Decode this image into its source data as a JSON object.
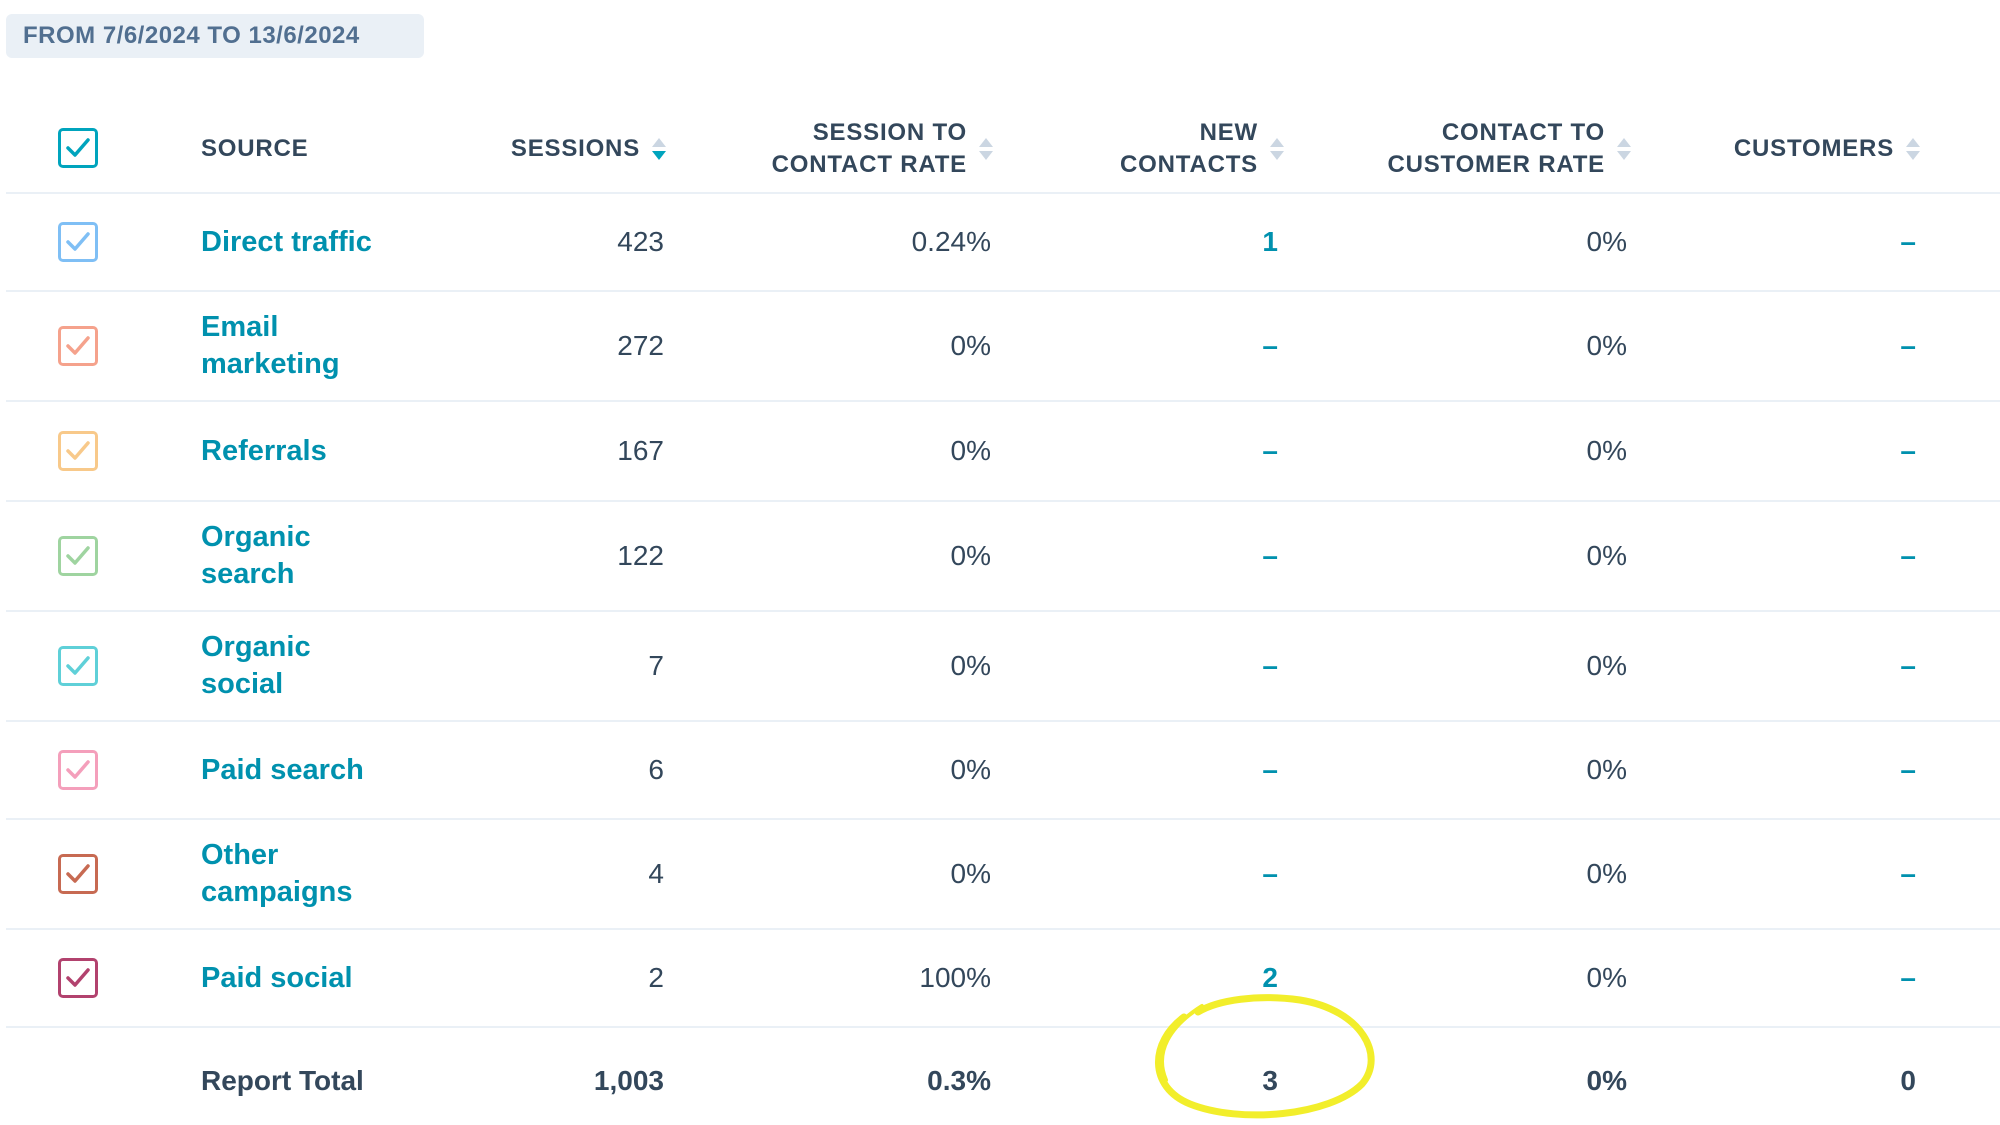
{
  "date_range": "FROM 7/6/2024 TO 13/6/2024",
  "columns": {
    "source": "SOURCE",
    "sessions": "SESSIONS",
    "session_to_contact_rate_line1": "SESSION TO",
    "session_to_contact_rate_line2": "CONTACT RATE",
    "new_contacts_line1": "NEW",
    "new_contacts_line2": "CONTACTS",
    "contact_to_customer_rate_line1": "CONTACT TO",
    "contact_to_customer_rate_line2": "CUSTOMER RATE",
    "customers": "CUSTOMERS"
  },
  "header_checkbox": {
    "checked": true,
    "color": "#00a4bd"
  },
  "rows": [
    {
      "source": "Direct traffic",
      "sessions": "423",
      "session_to_contact_rate": "0.24%",
      "new_contacts": "1",
      "contact_to_customer_rate": "0%",
      "customers": "–",
      "checkbox_color": "#7fbff5"
    },
    {
      "source": "Email marketing",
      "sessions": "272",
      "session_to_contact_rate": "0%",
      "new_contacts": "–",
      "contact_to_customer_rate": "0%",
      "customers": "–",
      "checkbox_color": "#f5a28c"
    },
    {
      "source": "Referrals",
      "sessions": "167",
      "session_to_contact_rate": "0%",
      "new_contacts": "–",
      "contact_to_customer_rate": "0%",
      "customers": "–",
      "checkbox_color": "#f8c98a"
    },
    {
      "source": "Organic search",
      "sessions": "122",
      "session_to_contact_rate": "0%",
      "new_contacts": "–",
      "contact_to_customer_rate": "0%",
      "customers": "–",
      "checkbox_color": "#9fd4a0"
    },
    {
      "source": "Organic social",
      "sessions": "7",
      "session_to_contact_rate": "0%",
      "new_contacts": "–",
      "contact_to_customer_rate": "0%",
      "customers": "–",
      "checkbox_color": "#5fd0d8"
    },
    {
      "source": "Paid search",
      "sessions": "6",
      "session_to_contact_rate": "0%",
      "new_contacts": "–",
      "contact_to_customer_rate": "0%",
      "customers": "–",
      "checkbox_color": "#f49fbb"
    },
    {
      "source": "Other campaigns",
      "sessions": "4",
      "session_to_contact_rate": "0%",
      "new_contacts": "–",
      "contact_to_customer_rate": "0%",
      "customers": "–",
      "checkbox_color": "#c76a52"
    },
    {
      "source": "Paid social",
      "sessions": "2",
      "session_to_contact_rate": "100%",
      "new_contacts": "2",
      "contact_to_customer_rate": "0%",
      "customers": "–",
      "checkbox_color": "#b2426e"
    }
  ],
  "total": {
    "label": "Report Total",
    "sessions": "1,003",
    "session_to_contact_rate": "0.3%",
    "new_contacts": "3",
    "contact_to_customer_rate": "0%",
    "customers": "0"
  },
  "colors": {
    "link": "#0091ae",
    "text": "#33475b",
    "highlight": "#f2ee2b"
  }
}
